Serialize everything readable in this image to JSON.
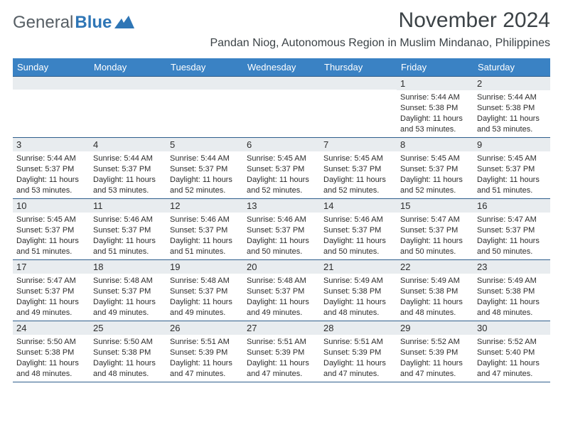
{
  "brand": {
    "part1": "General",
    "part2": "Blue"
  },
  "title": "November 2024",
  "location": "Pandan Niog, Autonomous Region in Muslim Mindanao, Philippines",
  "weekdays": [
    "Sunday",
    "Monday",
    "Tuesday",
    "Wednesday",
    "Thursday",
    "Friday",
    "Saturday"
  ],
  "colors": {
    "header_bg": "#3a82c4",
    "header_fg": "#ffffff",
    "daynum_bg": "#e8ecef",
    "border": "#2f5e8c",
    "text": "#2c2c2c",
    "title_fg": "#3b4246"
  },
  "weeks": [
    [
      {
        "n": "",
        "sr": "",
        "ss": "",
        "dl": ""
      },
      {
        "n": "",
        "sr": "",
        "ss": "",
        "dl": ""
      },
      {
        "n": "",
        "sr": "",
        "ss": "",
        "dl": ""
      },
      {
        "n": "",
        "sr": "",
        "ss": "",
        "dl": ""
      },
      {
        "n": "",
        "sr": "",
        "ss": "",
        "dl": ""
      },
      {
        "n": "1",
        "sr": "5:44 AM",
        "ss": "5:38 PM",
        "dl": "11 hours and 53 minutes."
      },
      {
        "n": "2",
        "sr": "5:44 AM",
        "ss": "5:38 PM",
        "dl": "11 hours and 53 minutes."
      }
    ],
    [
      {
        "n": "3",
        "sr": "5:44 AM",
        "ss": "5:37 PM",
        "dl": "11 hours and 53 minutes."
      },
      {
        "n": "4",
        "sr": "5:44 AM",
        "ss": "5:37 PM",
        "dl": "11 hours and 53 minutes."
      },
      {
        "n": "5",
        "sr": "5:44 AM",
        "ss": "5:37 PM",
        "dl": "11 hours and 52 minutes."
      },
      {
        "n": "6",
        "sr": "5:45 AM",
        "ss": "5:37 PM",
        "dl": "11 hours and 52 minutes."
      },
      {
        "n": "7",
        "sr": "5:45 AM",
        "ss": "5:37 PM",
        "dl": "11 hours and 52 minutes."
      },
      {
        "n": "8",
        "sr": "5:45 AM",
        "ss": "5:37 PM",
        "dl": "11 hours and 52 minutes."
      },
      {
        "n": "9",
        "sr": "5:45 AM",
        "ss": "5:37 PM",
        "dl": "11 hours and 51 minutes."
      }
    ],
    [
      {
        "n": "10",
        "sr": "5:45 AM",
        "ss": "5:37 PM",
        "dl": "11 hours and 51 minutes."
      },
      {
        "n": "11",
        "sr": "5:46 AM",
        "ss": "5:37 PM",
        "dl": "11 hours and 51 minutes."
      },
      {
        "n": "12",
        "sr": "5:46 AM",
        "ss": "5:37 PM",
        "dl": "11 hours and 51 minutes."
      },
      {
        "n": "13",
        "sr": "5:46 AM",
        "ss": "5:37 PM",
        "dl": "11 hours and 50 minutes."
      },
      {
        "n": "14",
        "sr": "5:46 AM",
        "ss": "5:37 PM",
        "dl": "11 hours and 50 minutes."
      },
      {
        "n": "15",
        "sr": "5:47 AM",
        "ss": "5:37 PM",
        "dl": "11 hours and 50 minutes."
      },
      {
        "n": "16",
        "sr": "5:47 AM",
        "ss": "5:37 PM",
        "dl": "11 hours and 50 minutes."
      }
    ],
    [
      {
        "n": "17",
        "sr": "5:47 AM",
        "ss": "5:37 PM",
        "dl": "11 hours and 49 minutes."
      },
      {
        "n": "18",
        "sr": "5:48 AM",
        "ss": "5:37 PM",
        "dl": "11 hours and 49 minutes."
      },
      {
        "n": "19",
        "sr": "5:48 AM",
        "ss": "5:37 PM",
        "dl": "11 hours and 49 minutes."
      },
      {
        "n": "20",
        "sr": "5:48 AM",
        "ss": "5:37 PM",
        "dl": "11 hours and 49 minutes."
      },
      {
        "n": "21",
        "sr": "5:49 AM",
        "ss": "5:38 PM",
        "dl": "11 hours and 48 minutes."
      },
      {
        "n": "22",
        "sr": "5:49 AM",
        "ss": "5:38 PM",
        "dl": "11 hours and 48 minutes."
      },
      {
        "n": "23",
        "sr": "5:49 AM",
        "ss": "5:38 PM",
        "dl": "11 hours and 48 minutes."
      }
    ],
    [
      {
        "n": "24",
        "sr": "5:50 AM",
        "ss": "5:38 PM",
        "dl": "11 hours and 48 minutes."
      },
      {
        "n": "25",
        "sr": "5:50 AM",
        "ss": "5:38 PM",
        "dl": "11 hours and 48 minutes."
      },
      {
        "n": "26",
        "sr": "5:51 AM",
        "ss": "5:39 PM",
        "dl": "11 hours and 47 minutes."
      },
      {
        "n": "27",
        "sr": "5:51 AM",
        "ss": "5:39 PM",
        "dl": "11 hours and 47 minutes."
      },
      {
        "n": "28",
        "sr": "5:51 AM",
        "ss": "5:39 PM",
        "dl": "11 hours and 47 minutes."
      },
      {
        "n": "29",
        "sr": "5:52 AM",
        "ss": "5:39 PM",
        "dl": "11 hours and 47 minutes."
      },
      {
        "n": "30",
        "sr": "5:52 AM",
        "ss": "5:40 PM",
        "dl": "11 hours and 47 minutes."
      }
    ]
  ],
  "labels": {
    "sunrise": "Sunrise: ",
    "sunset": "Sunset: ",
    "daylight": "Daylight: "
  }
}
